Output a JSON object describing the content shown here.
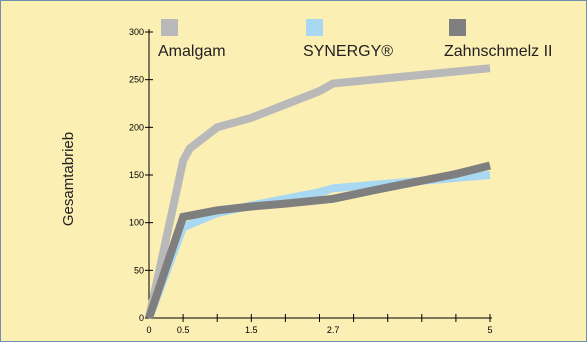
{
  "chart_data": {
    "type": "line",
    "title": "",
    "xlabel": "",
    "ylabel": "Gesamtabrieb",
    "xlim": [
      0,
      5
    ],
    "ylim": [
      0,
      300
    ],
    "x_tick_labels": [
      {
        "value": 0,
        "label": "0"
      },
      {
        "value": 0.5,
        "label": "0.5"
      },
      {
        "value": 1.5,
        "label": "1.5"
      },
      {
        "value": 2.7,
        "label": "2.7"
      },
      {
        "value": 5,
        "label": "5"
      }
    ],
    "x_minor_ticks": [
      0.5,
      1.0,
      1.5,
      2.0,
      2.5,
      3.0,
      3.5,
      4.0,
      4.5,
      5.0
    ],
    "y_ticks": [
      0,
      50,
      100,
      150,
      200,
      250,
      300
    ],
    "y_tick_labels": [
      "0",
      "50",
      "100",
      "150",
      "200",
      "250",
      "300"
    ],
    "grid": false,
    "legend_position": "top",
    "series": [
      {
        "name": "Amalgam",
        "color": "#b9b9b9",
        "points": [
          [
            0,
            0
          ],
          [
            0.5,
            165
          ],
          [
            0.6,
            178
          ],
          [
            1.0,
            200
          ],
          [
            1.5,
            210
          ],
          [
            2.0,
            224
          ],
          [
            2.5,
            238
          ],
          [
            2.7,
            246
          ],
          [
            5,
            262
          ]
        ]
      },
      {
        "name": "SYNERGY®",
        "color": "#a9d8f2",
        "points": [
          [
            0,
            0
          ],
          [
            0.5,
            95
          ],
          [
            1.0,
            110
          ],
          [
            1.5,
            118
          ],
          [
            2.0,
            125
          ],
          [
            2.5,
            132
          ],
          [
            2.7,
            136
          ],
          [
            5,
            150
          ]
        ]
      },
      {
        "name": "Zahnschmelz II",
        "color": "#7f7f7f",
        "points": [
          [
            0,
            0
          ],
          [
            0.5,
            106
          ],
          [
            1.0,
            113
          ],
          [
            1.5,
            117
          ],
          [
            2.0,
            120
          ],
          [
            2.7,
            125
          ],
          [
            3.5,
            137
          ],
          [
            4.5,
            151
          ],
          [
            5,
            160
          ]
        ]
      }
    ]
  }
}
